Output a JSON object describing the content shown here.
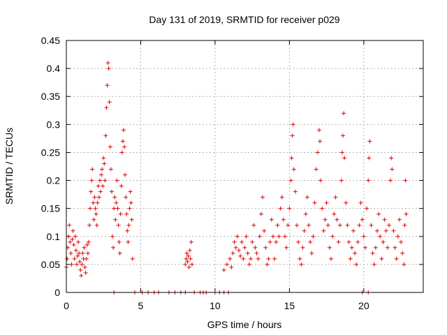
{
  "chart_data": {
    "type": "scatter",
    "title": "Day 131 of 2019, SRMTID for receiver p029",
    "xlabel": "GPS time / hours",
    "ylabel": "SRMTID / TECUs",
    "xlim": [
      0,
      24
    ],
    "ylim": [
      0,
      0.45
    ],
    "xticks": [
      0,
      5,
      10,
      15,
      20
    ],
    "xtick_labels": [
      "0",
      "5",
      "10",
      "15",
      "20"
    ],
    "yticks": [
      0,
      0.05,
      0.1,
      0.15,
      0.2,
      0.25,
      0.3,
      0.35,
      0.4,
      0.45
    ],
    "ytick_labels": [
      "0",
      "0.05",
      "0.1",
      "0.15",
      "0.2",
      "0.25",
      "0.3",
      "0.35",
      "0.4",
      "0.45"
    ],
    "grid": true,
    "marker": "+",
    "color": "#e00000",
    "series": [
      {
        "name": "SRMTID",
        "points": [
          [
            0.0,
            0.045
          ],
          [
            0.05,
            0.06
          ],
          [
            0.1,
            0.08
          ],
          [
            0.15,
            0.1
          ],
          [
            0.2,
            0.12
          ],
          [
            0.25,
            0.09
          ],
          [
            0.3,
            0.07
          ],
          [
            0.35,
            0.05
          ],
          [
            0.4,
            0.095
          ],
          [
            0.45,
            0.11
          ],
          [
            0.5,
            0.085
          ],
          [
            0.55,
            0.06
          ],
          [
            0.6,
            0.1
          ],
          [
            0.65,
            0.075
          ],
          [
            0.7,
            0.05
          ],
          [
            0.75,
            0.065
          ],
          [
            0.8,
            0.09
          ],
          [
            0.85,
            0.07
          ],
          [
            0.9,
            0.055
          ],
          [
            0.95,
            0.04
          ],
          [
            1.0,
            0.03
          ],
          [
            1.05,
            0.05
          ],
          [
            1.1,
            0.07
          ],
          [
            1.15,
            0.06
          ],
          [
            1.2,
            0.08
          ],
          [
            1.25,
            0.045
          ],
          [
            1.3,
            0.035
          ],
          [
            1.35,
            0.06
          ],
          [
            1.4,
            0.085
          ],
          [
            1.45,
            0.07
          ],
          [
            1.5,
            0.09
          ],
          [
            1.55,
            0.12
          ],
          [
            1.6,
            0.15
          ],
          [
            1.65,
            0.18
          ],
          [
            1.7,
            0.2
          ],
          [
            1.75,
            0.22
          ],
          [
            1.8,
            0.16
          ],
          [
            1.85,
            0.13
          ],
          [
            1.9,
            0.17
          ],
          [
            1.95,
            0.15
          ],
          [
            2.0,
            0.14
          ],
          [
            2.05,
            0.12
          ],
          [
            2.1,
            0.16
          ],
          [
            2.15,
            0.19
          ],
          [
            2.2,
            0.17
          ],
          [
            2.25,
            0.2
          ],
          [
            2.3,
            0.18
          ],
          [
            2.35,
            0.21
          ],
          [
            2.4,
            0.22
          ],
          [
            2.45,
            0.19
          ],
          [
            2.5,
            0.24
          ],
          [
            2.55,
            0.23
          ],
          [
            2.6,
            0.2
          ],
          [
            2.65,
            0.28
          ],
          [
            2.7,
            0.33
          ],
          [
            2.75,
            0.37
          ],
          [
            2.8,
            0.41
          ],
          [
            2.85,
            0.4
          ],
          [
            2.9,
            0.34
          ],
          [
            2.95,
            0.26
          ],
          [
            3.0,
            0.22
          ],
          [
            3.05,
            0.18
          ],
          [
            3.1,
            0.1
          ],
          [
            3.15,
            0.08
          ],
          [
            3.2,
            0.15
          ],
          [
            3.25,
            0.17
          ],
          [
            3.3,
            0.13
          ],
          [
            3.35,
            0.16
          ],
          [
            3.4,
            0.2
          ],
          [
            3.45,
            0.15
          ],
          [
            3.5,
            0.12
          ],
          [
            3.55,
            0.09
          ],
          [
            3.6,
            0.07
          ],
          [
            3.65,
            0.14
          ],
          [
            3.7,
            0.19
          ],
          [
            3.75,
            0.25
          ],
          [
            3.8,
            0.27
          ],
          [
            3.85,
            0.29
          ],
          [
            3.9,
            0.26
          ],
          [
            3.95,
            0.21
          ],
          [
            4.0,
            0.17
          ],
          [
            4.05,
            0.14
          ],
          [
            4.1,
            0.11
          ],
          [
            4.15,
            0.09
          ],
          [
            4.2,
            0.12
          ],
          [
            4.25,
            0.15
          ],
          [
            4.3,
            0.18
          ],
          [
            4.35,
            0.16
          ],
          [
            4.4,
            0.13
          ],
          [
            4.45,
            0.06
          ],
          [
            8.0,
            0.05
          ],
          [
            8.05,
            0.06
          ],
          [
            8.1,
            0.07
          ],
          [
            8.15,
            0.055
          ],
          [
            8.2,
            0.065
          ],
          [
            8.25,
            0.045
          ],
          [
            8.3,
            0.075
          ],
          [
            8.35,
            0.06
          ],
          [
            8.4,
            0.09
          ],
          [
            8.45,
            0.05
          ],
          [
            10.6,
            0.04
          ],
          [
            10.8,
            0.05
          ],
          [
            11.0,
            0.06
          ],
          [
            11.1,
            0.045
          ],
          [
            11.2,
            0.07
          ],
          [
            11.3,
            0.09
          ],
          [
            11.4,
            0.08
          ],
          [
            11.5,
            0.1
          ],
          [
            11.6,
            0.075
          ],
          [
            11.7,
            0.065
          ],
          [
            11.8,
            0.09
          ],
          [
            11.9,
            0.06
          ],
          [
            12.0,
            0.08
          ],
          [
            12.1,
            0.1
          ],
          [
            12.2,
            0.07
          ],
          [
            12.3,
            0.05
          ],
          [
            12.4,
            0.06
          ],
          [
            12.5,
            0.09
          ],
          [
            12.6,
            0.12
          ],
          [
            12.7,
            0.08
          ],
          [
            12.8,
            0.07
          ],
          [
            12.9,
            0.06
          ],
          [
            13.0,
            0.1
          ],
          [
            13.1,
            0.14
          ],
          [
            13.2,
            0.17
          ],
          [
            13.3,
            0.11
          ],
          [
            13.4,
            0.08
          ],
          [
            13.5,
            0.05
          ],
          [
            13.6,
            0.06
          ],
          [
            13.7,
            0.09
          ],
          [
            13.8,
            0.13
          ],
          [
            13.9,
            0.1
          ],
          [
            14.0,
            0.06
          ],
          [
            14.1,
            0.09
          ],
          [
            14.2,
            0.12
          ],
          [
            14.3,
            0.1
          ],
          [
            14.4,
            0.15
          ],
          [
            14.5,
            0.17
          ],
          [
            14.6,
            0.13
          ],
          [
            14.7,
            0.1
          ],
          [
            14.8,
            0.08
          ],
          [
            14.9,
            0.12
          ],
          [
            15.0,
            0.15
          ],
          [
            15.1,
            0.2
          ],
          [
            15.15,
            0.24
          ],
          [
            15.2,
            0.28
          ],
          [
            15.25,
            0.3
          ],
          [
            15.3,
            0.22
          ],
          [
            15.4,
            0.18
          ],
          [
            15.5,
            0.12
          ],
          [
            15.6,
            0.09
          ],
          [
            15.7,
            0.06
          ],
          [
            15.8,
            0.05
          ],
          [
            15.9,
            0.08
          ],
          [
            16.0,
            0.11
          ],
          [
            16.1,
            0.14
          ],
          [
            16.2,
            0.17
          ],
          [
            16.3,
            0.12
          ],
          [
            16.4,
            0.09
          ],
          [
            16.5,
            0.07
          ],
          [
            16.6,
            0.1
          ],
          [
            16.7,
            0.16
          ],
          [
            16.8,
            0.22
          ],
          [
            16.9,
            0.25
          ],
          [
            17.0,
            0.29
          ],
          [
            17.05,
            0.27
          ],
          [
            17.1,
            0.2
          ],
          [
            17.2,
            0.15
          ],
          [
            17.3,
            0.11
          ],
          [
            17.4,
            0.13
          ],
          [
            17.5,
            0.16
          ],
          [
            17.6,
            0.12
          ],
          [
            17.7,
            0.08
          ],
          [
            17.8,
            0.06
          ],
          [
            17.9,
            0.1
          ],
          [
            18.0,
            0.14
          ],
          [
            18.1,
            0.17
          ],
          [
            18.2,
            0.13
          ],
          [
            18.3,
            0.09
          ],
          [
            18.4,
            0.12
          ],
          [
            18.5,
            0.2
          ],
          [
            18.55,
            0.25
          ],
          [
            18.6,
            0.28
          ],
          [
            18.65,
            0.32
          ],
          [
            18.7,
            0.24
          ],
          [
            18.8,
            0.16
          ],
          [
            18.9,
            0.12
          ],
          [
            19.0,
            0.09
          ],
          [
            19.1,
            0.06
          ],
          [
            19.2,
            0.08
          ],
          [
            19.3,
            0.11
          ],
          [
            19.4,
            0.07
          ],
          [
            19.5,
            0.05
          ],
          [
            19.6,
            0.09
          ],
          [
            19.7,
            0.12
          ],
          [
            19.8,
            0.16
          ],
          [
            19.9,
            0.13
          ],
          [
            20.0,
            0.1
          ],
          [
            20.1,
            0.08
          ],
          [
            20.2,
            0.15
          ],
          [
            20.3,
            0.2
          ],
          [
            20.35,
            0.24
          ],
          [
            20.4,
            0.27
          ],
          [
            20.5,
            0.12
          ],
          [
            20.6,
            0.07
          ],
          [
            20.7,
            0.05
          ],
          [
            20.8,
            0.08
          ],
          [
            20.9,
            0.11
          ],
          [
            21.0,
            0.14
          ],
          [
            21.1,
            0.1
          ],
          [
            21.2,
            0.06
          ],
          [
            21.3,
            0.09
          ],
          [
            21.4,
            0.13
          ],
          [
            21.5,
            0.11
          ],
          [
            21.6,
            0.08
          ],
          [
            21.7,
            0.12
          ],
          [
            21.8,
            0.2
          ],
          [
            21.85,
            0.24
          ],
          [
            21.9,
            0.22
          ],
          [
            22.0,
            0.11
          ],
          [
            22.1,
            0.08
          ],
          [
            22.2,
            0.06
          ],
          [
            22.3,
            0.1
          ],
          [
            22.4,
            0.13
          ],
          [
            22.5,
            0.09
          ],
          [
            22.6,
            0.07
          ],
          [
            22.7,
            0.05
          ],
          [
            22.75,
            0.12
          ],
          [
            22.8,
            0.2
          ],
          [
            22.85,
            0.14
          ],
          [
            3.2,
            0.0
          ],
          [
            4.6,
            0.0
          ],
          [
            5.1,
            0.0
          ],
          [
            5.5,
            0.0
          ],
          [
            5.9,
            0.0
          ],
          [
            6.2,
            0.0
          ],
          [
            6.9,
            0.0
          ],
          [
            7.3,
            0.0
          ],
          [
            7.7,
            0.0
          ],
          [
            8.0,
            0.0
          ],
          [
            8.6,
            0.0
          ],
          [
            9.0,
            0.0
          ],
          [
            9.2,
            0.0
          ],
          [
            9.4,
            0.0
          ],
          [
            10.0,
            0.0
          ],
          [
            10.3,
            0.0
          ],
          [
            10.6,
            0.0
          ],
          [
            10.9,
            0.0
          ],
          [
            19.9,
            0.0
          ],
          [
            20.3,
            0.0
          ]
        ]
      }
    ]
  }
}
